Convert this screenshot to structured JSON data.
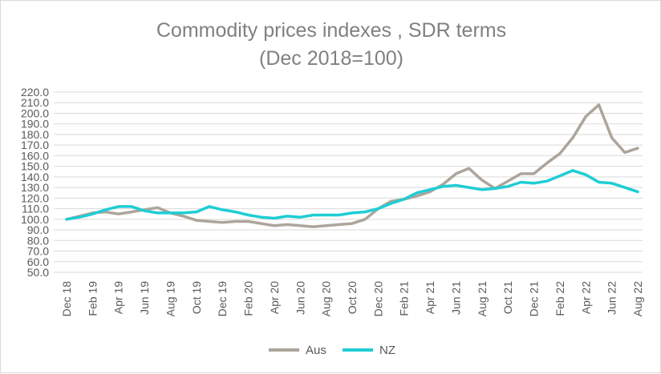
{
  "chart_data": {
    "type": "line",
    "title": "Commodity prices indexes , SDR terms",
    "subtitle": "(Dec 2018=100)",
    "xlabel": "",
    "ylabel": "",
    "ylim": [
      50,
      220
    ],
    "ytick_step": 10,
    "ytick_labels": [
      "50.0",
      "60.0",
      "70.0",
      "80.0",
      "90.0",
      "100.0",
      "110.0",
      "120.0",
      "130.0",
      "140.0",
      "150.0",
      "160.0",
      "170.0",
      "180.0",
      "190.0",
      "200.0",
      "210.0",
      "220.0"
    ],
    "grid": true,
    "legend_position": "bottom",
    "categories": [
      "Dec 18",
      "Jan 19",
      "Feb 19",
      "Mar 19",
      "Apr 19",
      "May 19",
      "Jun 19",
      "Jul 19",
      "Aug 19",
      "Sep 19",
      "Oct 19",
      "Nov 19",
      "Dec 19",
      "Jan 20",
      "Feb 20",
      "Mar 20",
      "Apr 20",
      "May 20",
      "Jun 20",
      "Jul 20",
      "Aug 20",
      "Sep 20",
      "Oct 20",
      "Nov 20",
      "Dec 20",
      "Jan 21",
      "Feb 21",
      "Mar 21",
      "Apr 21",
      "May 21",
      "Jun 21",
      "Jul 21",
      "Aug 21",
      "Sep 21",
      "Oct 21",
      "Nov 21",
      "Dec 21",
      "Jan 22",
      "Feb 22",
      "Mar 22",
      "Apr 22",
      "May 22",
      "Jun 22",
      "Jul 22",
      "Aug 22"
    ],
    "x_tick_labels": [
      "Dec 18",
      "Feb 19",
      "Apr 19",
      "Jun 19",
      "Aug 19",
      "Oct 19",
      "Dec 19",
      "Feb 20",
      "Apr 20",
      "Jun 20",
      "Aug 20",
      "Oct 20",
      "Dec 20",
      "Feb 21",
      "Apr 21",
      "Jun 21",
      "Aug 21",
      "Oct 21",
      "Dec 21",
      "Feb 22",
      "Apr 22",
      "Jun 22",
      "Aug 22"
    ],
    "series": [
      {
        "name": "Aus",
        "color": "#ada59b",
        "values": [
          100,
          103,
          106,
          107,
          105,
          107,
          109,
          111,
          106,
          103,
          99,
          98,
          97,
          98,
          98,
          96,
          94,
          95,
          94,
          93,
          94,
          95,
          96,
          100,
          110,
          117,
          119,
          122,
          126,
          133,
          143,
          148,
          137,
          129,
          136,
          143,
          143,
          153,
          162,
          177,
          197,
          208,
          177,
          163,
          167
        ]
      },
      {
        "name": "NZ",
        "color": "#1fcdd4",
        "values": [
          100,
          102,
          105,
          109,
          112,
          112,
          108,
          106,
          106,
          106,
          107,
          112,
          109,
          107,
          104,
          102,
          101,
          103,
          102,
          104,
          104,
          104,
          106,
          107,
          110,
          115,
          119,
          125,
          128,
          131,
          132,
          130,
          128,
          129,
          131,
          135,
          134,
          136,
          141,
          146,
          142,
          135,
          134,
          130,
          126
        ]
      }
    ]
  }
}
